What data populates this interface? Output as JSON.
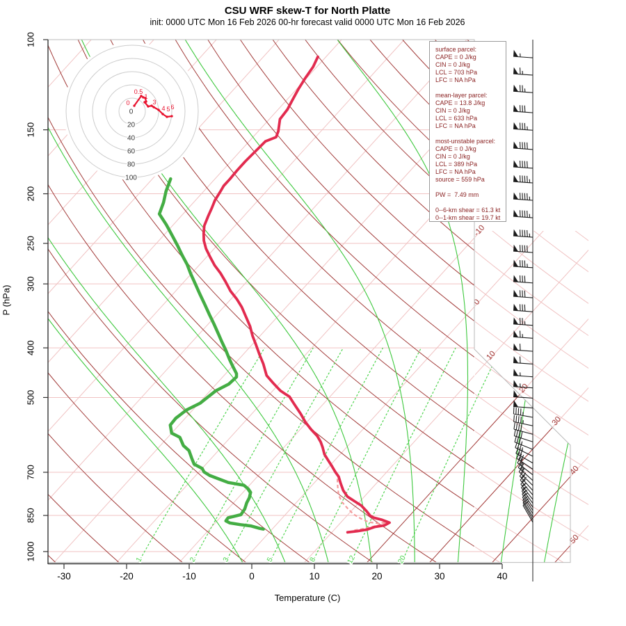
{
  "title": "CSU WRF skew-T for North Platte",
  "subtitle": "init: 0000 UTC Mon 16 Feb 2026    00-hr forecast valid 0000 UTC Mon 16 Feb 2026",
  "axes": {
    "ylabel": "P (hPa)",
    "xlabel": "Temperature (C)",
    "pressure_ticks": [
      100,
      150,
      200,
      250,
      300,
      400,
      500,
      700,
      850,
      1000
    ],
    "temp_ticks": [
      -30,
      -20,
      -10,
      0,
      10,
      20,
      30,
      40
    ],
    "pressure_range": [
      100,
      1050
    ],
    "isotherm_range_C": [
      -110,
      50
    ],
    "isotherm_step_C": 10,
    "isotherm_labels_C": [
      -10,
      0,
      10,
      20,
      30,
      40,
      50
    ],
    "dry_adiabat_range_K": [
      240,
      460
    ],
    "dry_adiabat_step_K": 10,
    "moist_adiabat_start_temps_C": [
      0.1,
      6.9,
      13.8,
      20.7,
      27.6,
      34.5,
      41.4,
      48.3
    ],
    "mixing_ratio_g_kg": [
      1,
      2,
      3,
      5,
      8,
      12,
      20
    ]
  },
  "parcel_info": {
    "lines": [
      "surface parcel:",
      "CAPE = 0 J/kg",
      "CIN = 0 J/kg",
      "LCL = 703 hPa",
      "LFC = NA hPa",
      "",
      "mean-layer parcel:",
      "CAPE = 13.8 J/kg",
      "CIN = 0 J/kg",
      "LCL = 633 hPa",
      "LFC = NA hPa",
      "",
      "most-unstable parcel:",
      "CAPE = 0 J/kg",
      "CIN = 0 J/kg",
      "LCL = 389 hPa",
      "LFC = NA hPa",
      "source = 559 hPa",
      "",
      "PW =  7.49 mm",
      "",
      "0--6-km shear = 61.3 kt",
      "0--1-km shear = 19.7 kt"
    ]
  },
  "hodograph": {
    "ring_radii_kt": [
      20,
      40,
      60,
      80,
      100
    ],
    "ring_labels": [
      "0",
      "20",
      "40",
      "60",
      "80",
      "100"
    ],
    "trace_uv_kt": [
      [
        3.2,
        8.4
      ],
      [
        13.7,
        23.2
      ],
      [
        16.8,
        21.1
      ],
      [
        20,
        20
      ],
      [
        21.1,
        14.7
      ],
      [
        18.9,
        13.7
      ],
      [
        24.2,
        7.4
      ],
      [
        29.5,
        8.4
      ],
      [
        32.6,
        6.3
      ],
      [
        40,
        2.1
      ],
      [
        46.3,
        -4.2
      ],
      [
        52.6,
        -8.4
      ],
      [
        60,
        -7.4
      ]
    ],
    "altitude_labels": [
      {
        "text": "0",
        "u": -6.3,
        "v": 9.5
      },
      {
        "text": "0.5",
        "u": 9.5,
        "v": 26.3
      },
      {
        "text": "1",
        "u": 21.1,
        "v": 18.9
      },
      {
        "text": "3",
        "u": 33.7,
        "v": 10.5
      },
      {
        "text": "4",
        "u": 47.4,
        "v": 1.1
      },
      {
        "text": "5",
        "u": 54.7,
        "v": 0.0
      },
      {
        "text": "6",
        "u": 61.1,
        "v": 3.2
      }
    ]
  },
  "chart_data": {
    "type": "skewt-logp",
    "temperature_profile_pT": [
      [
        108,
        -61.3
      ],
      [
        113,
        -60.6
      ],
      [
        119,
        -60.2
      ],
      [
        125,
        -59.7
      ],
      [
        131,
        -59.1
      ],
      [
        137,
        -58.5
      ],
      [
        143,
        -58.3
      ],
      [
        151,
        -56.8
      ],
      [
        155,
        -56.3
      ],
      [
        158,
        -57.4
      ],
      [
        163,
        -57.5
      ],
      [
        168,
        -57.6
      ],
      [
        173,
        -57.7
      ],
      [
        180,
        -57.7
      ],
      [
        187,
        -57.6
      ],
      [
        193,
        -57.6
      ],
      [
        198,
        -57.3
      ],
      [
        206,
        -56.9
      ],
      [
        213,
        -56.3
      ],
      [
        221,
        -55.7
      ],
      [
        231,
        -54.9
      ],
      [
        239,
        -53.9
      ],
      [
        247,
        -52.8
      ],
      [
        256,
        -51.3
      ],
      [
        266,
        -49.4
      ],
      [
        276,
        -47.5
      ],
      [
        286,
        -45.4
      ],
      [
        297,
        -43.4
      ],
      [
        310,
        -41.2
      ],
      [
        321,
        -39.1
      ],
      [
        333,
        -37.1
      ],
      [
        348,
        -35.0
      ],
      [
        363,
        -33.0
      ],
      [
        379,
        -31.2
      ],
      [
        395,
        -29.3
      ],
      [
        413,
        -27.3
      ],
      [
        430,
        -25.4
      ],
      [
        453,
        -23.2
      ],
      [
        469,
        -21.0
      ],
      [
        485,
        -18.8
      ],
      [
        493,
        -17.4
      ],
      [
        498,
        -16.5
      ],
      [
        509,
        -15.3
      ],
      [
        522,
        -13.9
      ],
      [
        538,
        -12.2
      ],
      [
        559,
        -10.2
      ],
      [
        577,
        -8.3
      ],
      [
        595,
        -6.3
      ],
      [
        611,
        -4.9
      ],
      [
        626,
        -3.8
      ],
      [
        646,
        -2.5
      ],
      [
        664,
        -1.0
      ],
      [
        681,
        0.4
      ],
      [
        698,
        1.7
      ],
      [
        714,
        3.0
      ],
      [
        736,
        4.3
      ],
      [
        759,
        5.7
      ],
      [
        781,
        7.3
      ],
      [
        800,
        9.4
      ],
      [
        813,
        10.8
      ],
      [
        833,
        12.4
      ],
      [
        851,
        13.7
      ],
      [
        859,
        14.6
      ],
      [
        867,
        16.2
      ],
      [
        878,
        17.8
      ],
      [
        889,
        17.4
      ],
      [
        895,
        16.1
      ],
      [
        906,
        15.2
      ],
      [
        912,
        13.9
      ],
      [
        917,
        12.5
      ]
    ],
    "dewpoint_profile_pT": [
      [
        187,
        -67.1
      ],
      [
        198,
        -66.0
      ],
      [
        208,
        -64.8
      ],
      [
        219,
        -63.8
      ],
      [
        230,
        -61.1
      ],
      [
        240,
        -58.9
      ],
      [
        252,
        -56.4
      ],
      [
        264,
        -54.1
      ],
      [
        275,
        -52.0
      ],
      [
        286,
        -50.2
      ],
      [
        300,
        -47.9
      ],
      [
        314,
        -45.7
      ],
      [
        329,
        -43.4
      ],
      [
        345,
        -41.1
      ],
      [
        360,
        -39.0
      ],
      [
        376,
        -36.9
      ],
      [
        388,
        -35.4
      ],
      [
        405,
        -33.3
      ],
      [
        421,
        -31.5
      ],
      [
        435,
        -29.9
      ],
      [
        449,
        -28.3
      ],
      [
        456,
        -27.8
      ],
      [
        471,
        -28.0
      ],
      [
        485,
        -29.1
      ],
      [
        513,
        -29.8
      ],
      [
        529,
        -31.0
      ],
      [
        549,
        -31.5
      ],
      [
        566,
        -31.4
      ],
      [
        587,
        -30.0
      ],
      [
        598,
        -28.1
      ],
      [
        621,
        -26.3
      ],
      [
        635,
        -24.7
      ],
      [
        655,
        -23.3
      ],
      [
        675,
        -21.9
      ],
      [
        688,
        -20.0
      ],
      [
        699,
        -19.2
      ],
      [
        710,
        -17.8
      ],
      [
        721,
        -15.9
      ],
      [
        733,
        -13.8
      ],
      [
        742,
        -10.9
      ],
      [
        754,
        -9.7
      ],
      [
        766,
        -8.8
      ],
      [
        785,
        -8.2
      ],
      [
        803,
        -7.9
      ],
      [
        826,
        -7.3
      ],
      [
        847,
        -7.1
      ],
      [
        859,
        -8.7
      ],
      [
        871,
        -8.6
      ],
      [
        879,
        -7.7
      ],
      [
        886,
        -5.7
      ],
      [
        891,
        -3.9
      ],
      [
        901,
        -2.1
      ],
      [
        904,
        -1.4
      ]
    ],
    "parcel_profile_pT": [
      [
        721,
        3.1
      ],
      [
        747,
        4.3
      ],
      [
        776,
        5.7
      ],
      [
        800,
        7.2
      ],
      [
        823,
        9.0
      ],
      [
        845,
        10.8
      ],
      [
        862,
        12.6
      ],
      [
        876,
        14.4
      ],
      [
        881,
        16.2
      ],
      [
        876,
        17.3
      ],
      [
        886,
        16.7
      ],
      [
        895,
        15.6
      ],
      [
        903,
        14.4
      ],
      [
        909,
        13.2
      ]
    ],
    "wind_barbs_p_spd_dir": [
      [
        108.5,
        55,
        274
      ],
      [
        117.3,
        65,
        274
      ],
      [
        126.9,
        75,
        274
      ],
      [
        138.9,
        80,
        274
      ],
      [
        150.3,
        85,
        274
      ],
      [
        163.9,
        90,
        274
      ],
      [
        178.3,
        90,
        274
      ],
      [
        190.5,
        95,
        274
      ],
      [
        206,
        95,
        274
      ],
      [
        222.8,
        95,
        274
      ],
      [
        243.2,
        95,
        274
      ],
      [
        260.5,
        90,
        274
      ],
      [
        278.9,
        85,
        274
      ],
      [
        298.7,
        80,
        274
      ],
      [
        319.3,
        80,
        274
      ],
      [
        340,
        80,
        274
      ],
      [
        361.5,
        75,
        274
      ],
      [
        383.1,
        65,
        274
      ],
      [
        406.2,
        60,
        274
      ],
      [
        430.2,
        60,
        274
      ],
      [
        455.6,
        55,
        274
      ],
      [
        478.9,
        55,
        274
      ],
      [
        501.5,
        50,
        274
      ],
      [
        524.2,
        50,
        274
      ],
      [
        546.7,
        45,
        280
      ],
      [
        568,
        45,
        282
      ],
      [
        590,
        40,
        285
      ],
      [
        610.5,
        40,
        288
      ],
      [
        631.6,
        35,
        292
      ],
      [
        651.3,
        35,
        296
      ],
      [
        671.6,
        30,
        300
      ],
      [
        690.5,
        30,
        304
      ],
      [
        708.2,
        25,
        308
      ],
      [
        726.3,
        25,
        312
      ],
      [
        742.9,
        20,
        315
      ],
      [
        759.9,
        20,
        318
      ],
      [
        775.3,
        20,
        320
      ],
      [
        791.1,
        15,
        322
      ],
      [
        805,
        15,
        324
      ],
      [
        819.1,
        15,
        326
      ],
      [
        831.1,
        15,
        327
      ],
      [
        843.2,
        10,
        328
      ],
      [
        855.5,
        10,
        329
      ],
      [
        865.9,
        10,
        330
      ],
      [
        876.4,
        10,
        330
      ]
    ]
  },
  "colors": {
    "dark_line": "#a23b39",
    "pale_line": "#f0c2c2",
    "moist_green": "#3cc83c",
    "mixing_green": "#4ed44e",
    "dewpoint": "#44ad44",
    "temperature": "#e22b4f",
    "parcel": "#f49c9c",
    "barb": "#1a1a1a",
    "info_text": "#8b2323",
    "hodo_trace": "#e8112d",
    "ring": "#cccccc"
  }
}
